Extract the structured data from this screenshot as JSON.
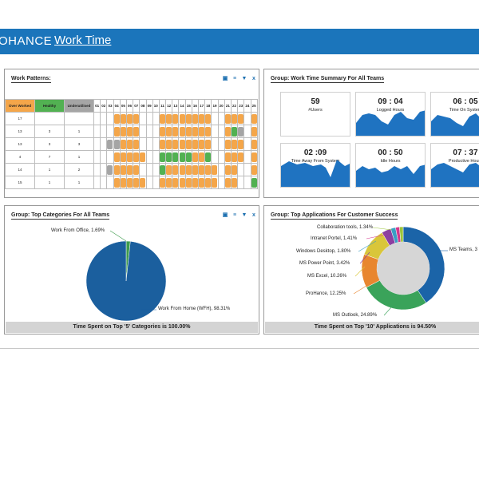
{
  "header": {
    "brand": "OHANCE",
    "title": "Work Time"
  },
  "work_patterns": {
    "title": "Work Patterns:",
    "columns": {
      "over": "Over Worked",
      "healthy": "Healthy",
      "under": "Underutilised"
    },
    "days": [
      "01",
      "02",
      "03",
      "04",
      "05",
      "06",
      "07",
      "08",
      "09",
      "10",
      "11",
      "12",
      "13",
      "14",
      "15",
      "16",
      "17",
      "18",
      "19",
      "20",
      "21",
      "22",
      "23",
      "24",
      "25"
    ],
    "rows": [
      {
        "over": "17",
        "healthy": "",
        "under": ""
      },
      {
        "over": "13",
        "healthy": "3",
        "under": "1"
      },
      {
        "over": "13",
        "healthy": "3",
        "under": "3"
      },
      {
        "over": "4",
        "healthy": "7",
        "under": "1"
      },
      {
        "over": "14",
        "healthy": "1",
        "under": "2"
      },
      {
        "over": "15",
        "healthy": "1",
        "under": "1"
      }
    ],
    "colors": {
      "over": "#f4a64a",
      "healthy": "#52b152",
      "under": "#a5a5a5"
    }
  },
  "summary": {
    "title": "Group: Work Time Summary For All Teams",
    "tiles": [
      {
        "value": "59",
        "label": "#Users",
        "chart": false
      },
      {
        "value": "09 : 04",
        "label": "Logged Hours",
        "chart": true
      },
      {
        "value": "06 : 05",
        "label": "Time On System",
        "chart": true
      },
      {
        "value": "02 :09",
        "label": "Time Away From System",
        "chart": true
      },
      {
        "value": "00 : 50",
        "label": "Idle Hours",
        "chart": true
      },
      {
        "value": "07 : 37",
        "label": "Productive Hours",
        "chart": true
      }
    ]
  },
  "categories": {
    "title": "Group: Top Categories For All Teams",
    "footer": "Time Spent on Top '5' Categories is 100.00%",
    "labels": [
      "Work From Office, 1.69%",
      "Work From Home (WFH), 98.31%"
    ]
  },
  "applications": {
    "title": "Group: Top Applications For Customer Success",
    "footer": "Time Spent on Top '10' Applications is 94.50%",
    "labels": [
      "Collaboration tools, 1.34%",
      "Intranet Portel, 1.41%",
      "Windows Desktop, 1.80%",
      "MS Power Point, 3.42%",
      "MS Excel, 10.26%",
      "ProHance, 12.25%",
      "MS Outlook, 24.89%",
      "MS Teams, 3"
    ]
  },
  "chart_data": [
    {
      "type": "pie",
      "categories": [
        "Work From Office",
        "Work From Home (WFH)"
      ],
      "values": [
        1.69,
        98.31
      ],
      "colors": [
        "#3d9b4c",
        "#1b5f9e"
      ]
    },
    {
      "type": "pie",
      "categories": [
        "MS Teams",
        "MS Outlook",
        "ProHance",
        "MS Excel",
        "MS Power Point",
        "Windows Desktop",
        "Intranet Portel",
        "Collaboration tools"
      ],
      "values": [
        38.0,
        24.89,
        12.25,
        10.26,
        3.42,
        1.8,
        1.41,
        1.34
      ],
      "colors": [
        "#1b64a8",
        "#3aa35a",
        "#e8862f",
        "#d9c63a",
        "#8c3fa0",
        "#3a9ec4",
        "#d4378c",
        "#9bc43a"
      ]
    }
  ]
}
